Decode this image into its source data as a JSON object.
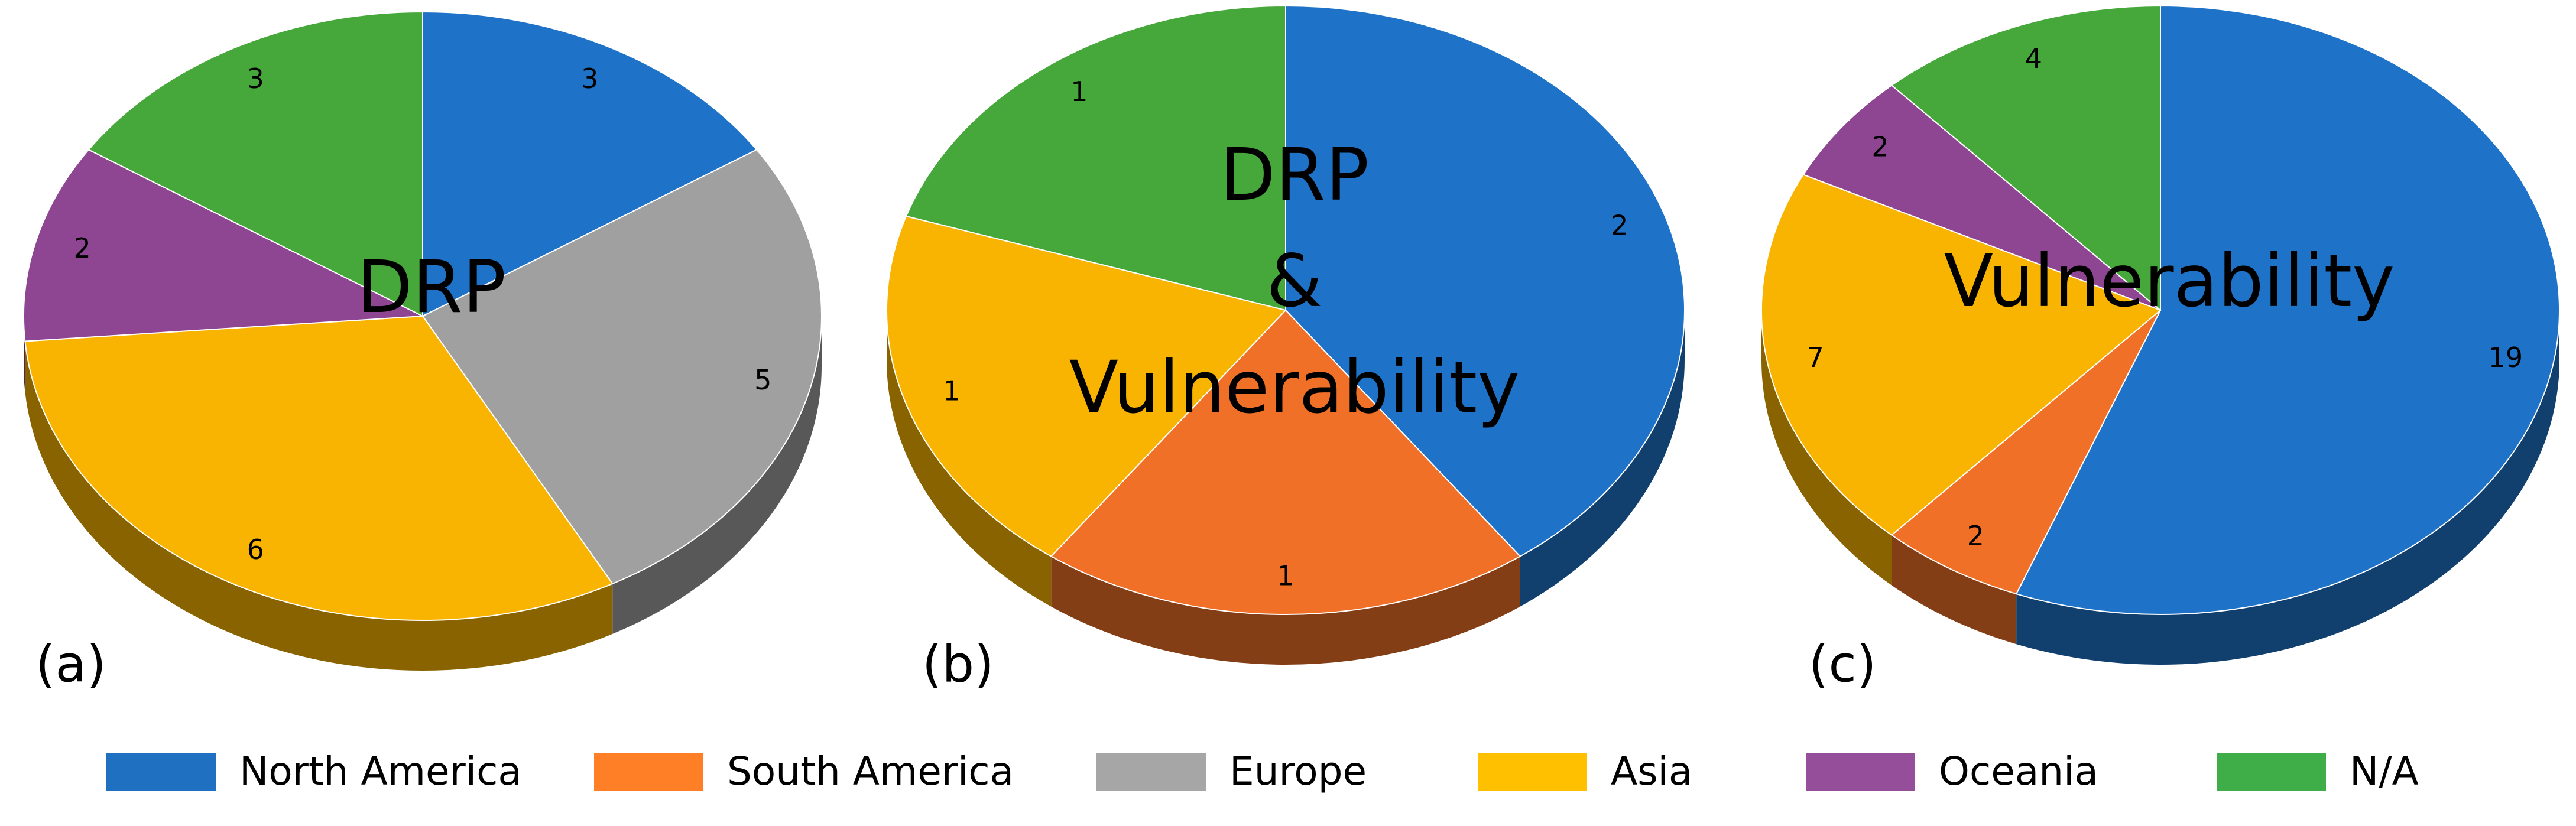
{
  "chart_data": [
    {
      "type": "pie",
      "label": "(a)",
      "title": [
        "DRP"
      ],
      "categories": [
        "North America",
        "Europe",
        "Asia",
        "Oceania",
        "N/A"
      ],
      "values": [
        3,
        5,
        6,
        2,
        3
      ],
      "colors": [
        "#1e73c8",
        "#a0a0a0",
        "#f8b400",
        "#8e4592",
        "#46a83a"
      ]
    },
    {
      "type": "pie",
      "label": "(b)",
      "title": [
        "DRP",
        "&",
        "Vulnerability"
      ],
      "categories": [
        "North America",
        "South America",
        "Asia",
        "N/A"
      ],
      "values": [
        2,
        1,
        1,
        1
      ],
      "colors": [
        "#1e73c8",
        "#f07028",
        "#f8b400",
        "#46a83a"
      ]
    },
    {
      "type": "pie",
      "label": "(c)",
      "title": [
        "Vulnerability"
      ],
      "categories": [
        "North America",
        "South America",
        "Asia",
        "Oceania",
        "N/A"
      ],
      "values": [
        19,
        2,
        7,
        2,
        4
      ],
      "colors": [
        "#1e73c8",
        "#f07028",
        "#f8b400",
        "#8e4592",
        "#46a83a"
      ]
    }
  ],
  "legend": {
    "entries": [
      {
        "name": "North America",
        "color": "#1f70c1"
      },
      {
        "name": "South America",
        "color": "#ff7f27"
      },
      {
        "name": "Europe",
        "color": "#a6a6a6"
      },
      {
        "name": "Asia",
        "color": "#ffc000"
      },
      {
        "name": "Oceania",
        "color": "#954f9a"
      },
      {
        "name": "N/A",
        "color": "#3fae49"
      }
    ]
  }
}
